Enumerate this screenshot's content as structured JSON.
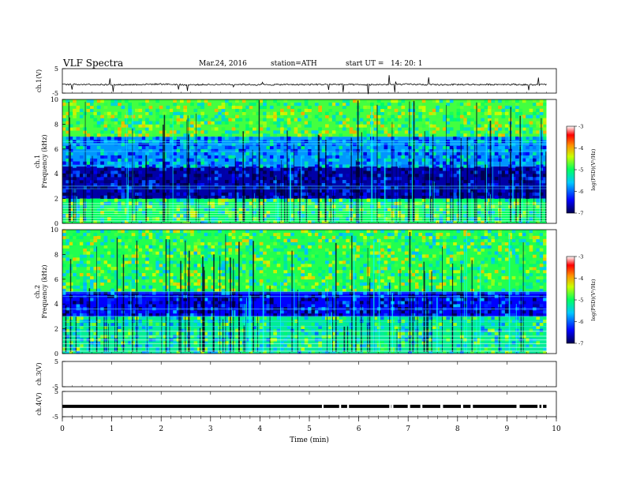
{
  "header": {
    "title": "VLF Spectra",
    "date": "Mar.24, 2016",
    "station": "station=ATH",
    "start_label": "start UT =",
    "start_time": "14: 20: 1"
  },
  "chart_data": [
    {
      "type": "line",
      "panel": "ch.1",
      "ylabel": "ch.1(V)",
      "ylim": [
        -5,
        5
      ],
      "yticks": [
        "5",
        "-5"
      ],
      "description_values": {
        "baseline": -1.5,
        "noise_amplitude": 0.4,
        "spike_max": 3.0
      },
      "x": [
        0,
        0.5,
        1,
        1.5,
        2,
        2.5,
        3,
        3.5,
        4,
        4.5,
        5,
        5.5,
        6,
        6.5,
        7,
        7.5,
        8,
        8.5,
        9,
        9.5,
        9.8
      ],
      "values": [
        -1.5,
        -1.4,
        -1.6,
        -1.5,
        -1.3,
        -1.6,
        -1.5,
        -1.4,
        -1.6,
        -1.5,
        -1.5,
        -1.4,
        -1.6,
        -1.5,
        -1.4,
        -1.6,
        -1.5,
        -1.5,
        -1.4,
        -1.6,
        -1.5
      ],
      "color": "#000000"
    },
    {
      "type": "heatmap",
      "panel": "ch.1",
      "ylabel": "Frequency (kHz)",
      "ylabel_ch": "ch.1",
      "ylim": [
        0,
        10
      ],
      "yticks": [
        "0",
        "2",
        "4",
        "6",
        "8",
        "10"
      ],
      "xlim": [
        0,
        9.8
      ],
      "colorbar": {
        "label": "log(PSD)(V²/Hz)",
        "range": [
          -7,
          -3
        ],
        "ticks": [
          "-3",
          "-4",
          "-5",
          "-6",
          "-7"
        ]
      },
      "band_profile_kHz": [
        {
          "range": [
            0,
            2
          ],
          "level": -5.0
        },
        {
          "range": [
            2,
            4.6
          ],
          "level": -6.7
        },
        {
          "range": [
            4.6,
            7
          ],
          "level": -5.8
        },
        {
          "range": [
            7,
            10
          ],
          "level": -4.8
        }
      ],
      "lines_kHz": [
        0.2,
        0.4,
        0.6,
        0.8,
        1.0,
        1.2,
        1.4,
        1.6,
        2.8,
        3.0,
        5.8,
        6.4,
        6.6
      ]
    },
    {
      "type": "heatmap",
      "panel": "ch.2",
      "ylabel": "Frequency (kHz)",
      "ylabel_ch": "ch.2",
      "ylim": [
        0,
        10
      ],
      "yticks": [
        "0",
        "2",
        "4",
        "6",
        "8",
        "10"
      ],
      "xlim": [
        0,
        9.8
      ],
      "colorbar": {
        "label": "log(PSD)(V²/Hz)",
        "range": [
          -7,
          -3
        ],
        "ticks": [
          "-3",
          "-4",
          "-5",
          "-6",
          "-7"
        ]
      },
      "band_profile_kHz": [
        {
          "range": [
            0,
            3
          ],
          "level": -5.2
        },
        {
          "range": [
            3,
            5
          ],
          "level": -6.4
        },
        {
          "range": [
            5,
            10
          ],
          "level": -4.9
        }
      ],
      "lines_kHz": [
        0.2,
        0.5,
        0.8,
        1.1,
        1.4,
        1.8,
        2.2,
        2.6,
        3.0,
        3.6,
        4.6,
        4.9,
        5.0
      ]
    },
    {
      "type": "line",
      "panel": "ch.3",
      "ylabel": "ch.3(V)",
      "ylim": [
        -5,
        5
      ],
      "yticks": [
        "5",
        "-5"
      ],
      "x": [],
      "values": []
    },
    {
      "type": "line",
      "panel": "ch.4",
      "ylabel": "ch.4(V)",
      "ylim": [
        -5,
        5
      ],
      "yticks": [
        "5",
        "-5"
      ],
      "x": [
        0,
        9.8
      ],
      "values": [
        -0.9,
        -0.9
      ],
      "color": "#000000"
    }
  ],
  "x_axis": {
    "label": "Time (min)",
    "ticks": [
      "0",
      "1",
      "2",
      "3",
      "4",
      "5",
      "6",
      "7",
      "8",
      "9",
      "10"
    ],
    "xlim": [
      0,
      10
    ]
  }
}
